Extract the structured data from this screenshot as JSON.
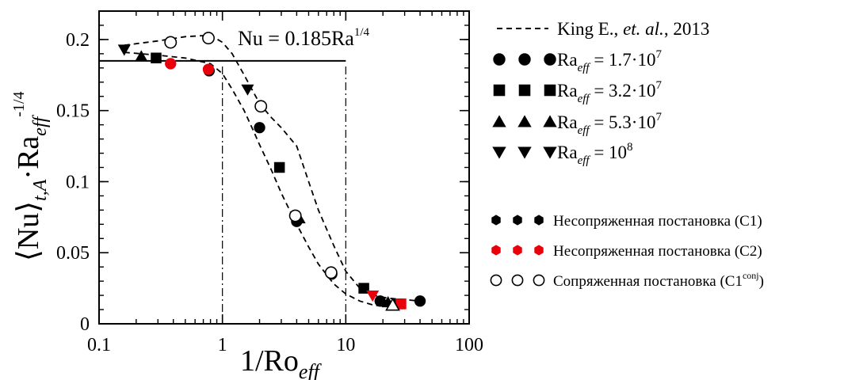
{
  "chart_data": {
    "type": "scatter",
    "xscale": "log",
    "xlim": [
      0.1,
      100
    ],
    "ylim": [
      0,
      0.22
    ],
    "xticks": [
      {
        "value": 0.1,
        "label": "0.1"
      },
      {
        "value": 1,
        "label": "1"
      },
      {
        "value": 10,
        "label": "10"
      },
      {
        "value": 100,
        "label": "100"
      }
    ],
    "yticks": [
      {
        "value": 0,
        "label": "0"
      },
      {
        "value": 0.05,
        "label": "0.05"
      },
      {
        "value": 0.1,
        "label": "0.1"
      },
      {
        "value": 0.15,
        "label": "0.15"
      },
      {
        "value": 0.2,
        "label": "0.2"
      }
    ],
    "xlabel": {
      "main": "1/Ro",
      "sub": "eff"
    },
    "ylabel": {
      "main": "⟨Nu⟩",
      "sub": "t,A",
      "mid": "·Ra",
      "sub2": "eff",
      "sup": "-1/4"
    },
    "annotation": {
      "main": "Nu = 0.185Ra",
      "sup": "1/4"
    },
    "reference_line": {
      "y": 0.185
    },
    "vertical_dashdot_lines": [
      1,
      10
    ],
    "king_curves": [
      {
        "x": [
          0.16,
          0.3,
          0.5,
          0.8,
          1.0,
          1.2,
          1.5,
          2.0,
          2.5,
          3.0,
          4.0,
          5.0,
          6.0,
          8.0,
          10.0,
          13.0,
          17.0,
          22.0,
          30.0,
          40.0
        ],
        "y": [
          0.196,
          0.199,
          0.202,
          0.203,
          0.198,
          0.19,
          0.175,
          0.155,
          0.145,
          0.138,
          0.125,
          0.1,
          0.08,
          0.055,
          0.037,
          0.025,
          0.02,
          0.018,
          0.017,
          0.016
        ]
      },
      {
        "x": [
          0.16,
          0.3,
          0.5,
          0.8,
          1.0,
          1.2,
          1.5,
          1.8,
          2.0,
          2.5,
          3.0,
          3.5,
          4.0,
          5.0,
          6.0,
          8.0,
          10.0,
          13.0,
          17.0,
          25.0
        ],
        "y": [
          0.191,
          0.189,
          0.187,
          0.183,
          0.176,
          0.165,
          0.15,
          0.135,
          0.126,
          0.108,
          0.092,
          0.08,
          0.07,
          0.054,
          0.042,
          0.028,
          0.021,
          0.016,
          0.013,
          0.012
        ]
      }
    ],
    "series": [
      {
        "name": "Ra_eff = 1.7·10^7",
        "group": "C1",
        "marker": "circle",
        "color": "#000000",
        "x": [
          0.78,
          2.0,
          4.0,
          7.7,
          19.0,
          40.0
        ],
        "y": [
          0.178,
          0.138,
          0.072,
          0.035,
          0.016,
          0.016
        ]
      },
      {
        "name": "Ra_eff = 3.2·10^7",
        "group": "C1",
        "marker": "square",
        "color": "#000000",
        "x": [
          0.29,
          2.9,
          14.0,
          27.0
        ],
        "y": [
          0.187,
          0.11,
          0.025,
          0.014
        ]
      },
      {
        "name": "Ra_eff = 5.3·10^7",
        "group": "C1",
        "marker": "triangle-up",
        "color": "#000000",
        "x": [
          0.22,
          4.2,
          22.0
        ],
        "y": [
          0.188,
          0.074,
          0.015
        ]
      },
      {
        "name": "Ra_eff = 10^8",
        "group": "C1",
        "marker": "triangle-down",
        "color": "#000000",
        "x": [
          0.16,
          1.6
        ],
        "y": [
          0.193,
          0.165
        ]
      },
      {
        "name": "C2",
        "group": "C2",
        "marker": "circle",
        "color": "#e8000b",
        "x": [
          0.38,
          0.77
        ],
        "y": [
          0.183,
          0.179
        ]
      },
      {
        "name": "C2",
        "group": "C2",
        "marker": "triangle-down",
        "color": "#e8000b",
        "x": [
          16.5
        ],
        "y": [
          0.02
        ]
      },
      {
        "name": "C2",
        "group": "C2",
        "marker": "square",
        "color": "#e8000b",
        "x": [
          28.0
        ],
        "y": [
          0.014
        ]
      },
      {
        "name": "C1conj",
        "group": "C1conj",
        "marker": "circle-open",
        "color": "#000000",
        "x": [
          0.38,
          0.77,
          2.05,
          3.9,
          7.6
        ],
        "y": [
          0.198,
          0.201,
          0.153,
          0.076,
          0.036
        ]
      },
      {
        "name": "C1conj",
        "group": "C1conj",
        "marker": "triangle-up-open",
        "color": "#000000",
        "x": [
          24.0
        ],
        "y": [
          0.013
        ]
      }
    ],
    "legend": {
      "placement": "right",
      "king": "King E., et. al., 2013",
      "king_parts": {
        "pre": "King E., ",
        "italic": "et. al.",
        "post": ", 2013"
      },
      "ra_entries": [
        {
          "marker": "circle",
          "pre": "Ra",
          "sub": "eff",
          "mid": " = 1.7·10",
          "sup": "7"
        },
        {
          "marker": "square",
          "pre": "Ra",
          "sub": "eff",
          "mid": " = 3.2·10",
          "sup": "7"
        },
        {
          "marker": "triangle-up",
          "pre": "Ra",
          "sub": "eff",
          "mid": " = 5.3·10",
          "sup": "7"
        },
        {
          "marker": "triangle-down",
          "pre": "Ra",
          "sub": "eff",
          "mid": " = 10",
          "sup": "8"
        }
      ],
      "formulation_entries": [
        {
          "marker": "hexagon",
          "color": "#000000",
          "text": "Несопряженная постановка (C1)",
          "sup": "",
          "tail": ""
        },
        {
          "marker": "hexagon",
          "color": "#e8000b",
          "text": "Несопряженная постановка (C2)",
          "sup": "",
          "tail": ""
        },
        {
          "marker": "circle-open",
          "color": "#000000",
          "text": "Сопряженная постановка (C1",
          "sup": "conj",
          "tail": ")"
        }
      ]
    }
  }
}
